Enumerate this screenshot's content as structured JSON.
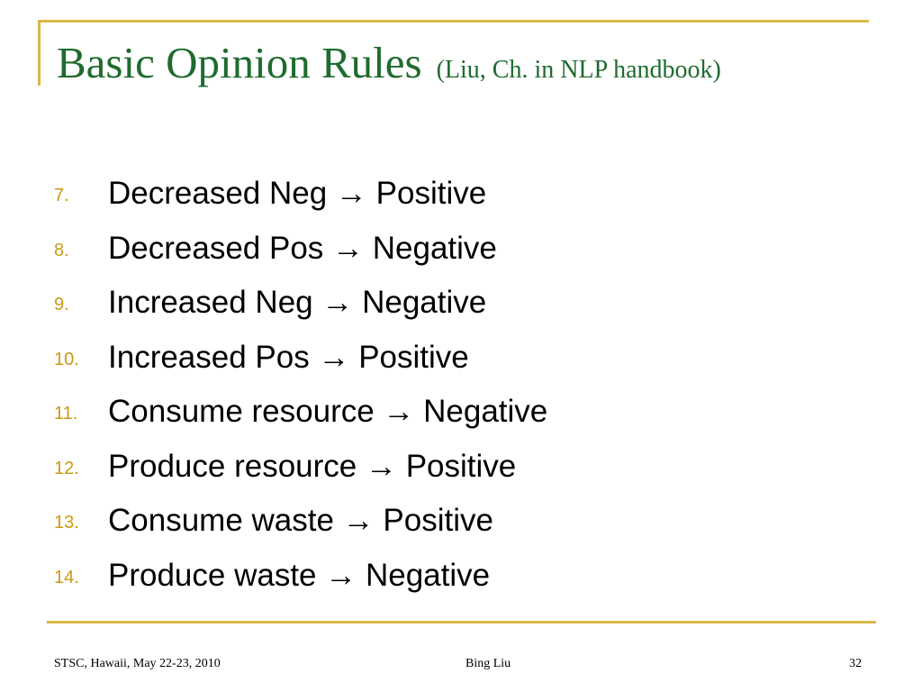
{
  "slide": {
    "title": "Basic Opinion Rules",
    "subtitle": "(Liu, Ch. in NLP handbook)",
    "rules": [
      {
        "number": "7.",
        "text": "Decreased Neg  → Positive"
      },
      {
        "number": "8.",
        "text": "Decreased Pos → Negative"
      },
      {
        "number": "9.",
        "text": "Increased Neg → Negative"
      },
      {
        "number": "10.",
        "text": "Increased Pos → Positive"
      },
      {
        "number": "11.",
        "text": "Consume resource → Negative"
      },
      {
        "number": "12.",
        "text": "Produce resource → Positive"
      },
      {
        "number": "13.",
        "text": "Consume waste → Positive"
      },
      {
        "number": "14.",
        "text": "Produce waste → Negative"
      }
    ]
  },
  "footer": {
    "left": "STSC, Hawaii, May 22-23, 2010",
    "center": "Bing Liu",
    "right": "32"
  },
  "colors": {
    "title": "#1f6b2f",
    "accent": "#d9b84a",
    "number": "#c99a14"
  }
}
